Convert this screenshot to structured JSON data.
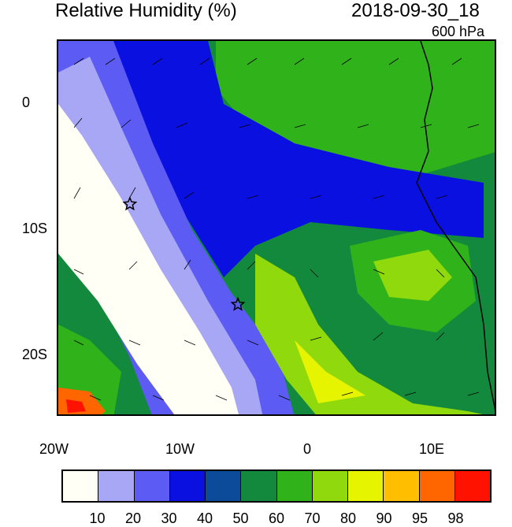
{
  "header": {
    "title": "Relative Humidity (%)",
    "datetime": "2018-09-30_18",
    "level": "600 hPa"
  },
  "axes": {
    "x_ticks": [
      "20W",
      "10W",
      "0",
      "10E"
    ],
    "y_ticks": [
      "0",
      "10S",
      "20S"
    ]
  },
  "markers": [
    {
      "name": "star-marker-1",
      "lon": -14.3,
      "lat": -8.0
    },
    {
      "name": "star-marker-2",
      "lon": -5.7,
      "lat": -16.0
    }
  ],
  "colorbar": {
    "labels": [
      "10",
      "20",
      "30",
      "40",
      "50",
      "60",
      "70",
      "80",
      "90",
      "95",
      "98"
    ],
    "colors": [
      "#fffff5",
      "#a7a7f6",
      "#5c5cf4",
      "#0a10e0",
      "#0c4a9a",
      "#12893c",
      "#30b21a",
      "#8fd90c",
      "#e6f400",
      "#ffbe00",
      "#ff6600",
      "#ff1200"
    ]
  }
}
